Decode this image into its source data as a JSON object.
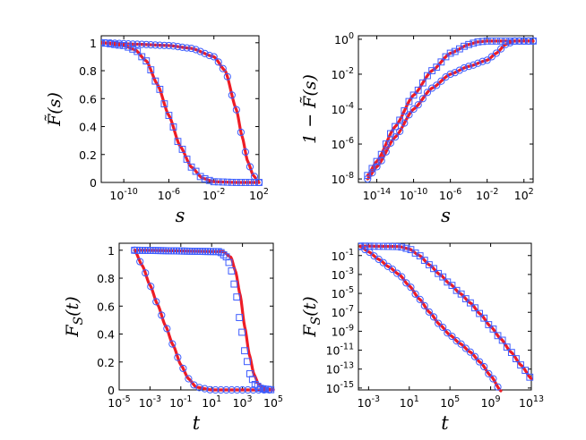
{
  "figure": {
    "fit_color": "#ee1c25",
    "marker_color": "#3d5cff",
    "panels_layout": "2x2"
  },
  "chart_data": [
    {
      "id": "top-left",
      "type": "line",
      "xscale": "log",
      "yscale": "linear",
      "xlim_log10": [
        -12,
        2
      ],
      "ylim": [
        0,
        1.05
      ],
      "xticks": [
        {
          "v": -10,
          "base": "10",
          "exp": "-10"
        },
        {
          "v": -6,
          "base": "10",
          "exp": "-6"
        },
        {
          "v": -2,
          "base": "10",
          "exp": "-2"
        },
        {
          "v": 2,
          "base": "10",
          "exp": "2"
        }
      ],
      "yticks": [
        {
          "v": 0,
          "label": "0"
        },
        {
          "v": 0.2,
          "label": "0.2"
        },
        {
          "v": 0.4,
          "label": "0.4"
        },
        {
          "v": 0.6,
          "label": "0.6"
        },
        {
          "v": 0.8,
          "label": "0.8"
        },
        {
          "v": 1,
          "label": "1"
        }
      ],
      "xlabel": "s",
      "ylabel": "F̃(s)",
      "series": [
        {
          "name": "circles",
          "marker": "circle",
          "step": 0.4,
          "x": [
            -12,
            -9,
            -6,
            -4,
            -2,
            -1,
            0,
            0.5,
            1,
            1.5,
            2
          ],
          "y": [
            1.0,
            0.99,
            0.98,
            0.96,
            0.9,
            0.8,
            0.52,
            0.33,
            0.15,
            0.05,
            0.0
          ]
        },
        {
          "name": "squares",
          "marker": "square",
          "step": 0.4,
          "x": [
            -12,
            -10,
            -9,
            -8,
            -7,
            -6,
            -5,
            -4,
            -3,
            -2,
            0,
            2
          ],
          "y": [
            1.0,
            0.98,
            0.95,
            0.87,
            0.7,
            0.48,
            0.26,
            0.11,
            0.03,
            0.005,
            0.0,
            0.0
          ]
        }
      ]
    },
    {
      "id": "top-right",
      "type": "line",
      "xscale": "log",
      "yscale": "log",
      "xlim_log10": [
        -16,
        3
      ],
      "ylim_log10": [
        -8.2,
        0.2
      ],
      "xticks": [
        {
          "v": -14,
          "base": "10",
          "exp": "-14"
        },
        {
          "v": -10,
          "base": "10",
          "exp": "-10"
        },
        {
          "v": -6,
          "base": "10",
          "exp": "-6"
        },
        {
          "v": -2,
          "base": "10",
          "exp": "-2"
        },
        {
          "v": 2,
          "base": "10",
          "exp": "2"
        }
      ],
      "yticks": [
        {
          "v": -8,
          "base": "10",
          "exp": "-8"
        },
        {
          "v": -6,
          "base": "10",
          "exp": "-6"
        },
        {
          "v": -4,
          "base": "10",
          "exp": "-4"
        },
        {
          "v": -2,
          "base": "10",
          "exp": "-2"
        },
        {
          "v": 0,
          "base": "10",
          "exp": "0"
        }
      ],
      "xlabel": "s",
      "ylabel": "1 − F̃(s)",
      "series": [
        {
          "name": "squares",
          "marker": "square",
          "step": 0.5,
          "x": [
            -15,
            -14,
            -12,
            -10,
            -8,
            -6,
            -4,
            -3,
            -2,
            0,
            3
          ],
          "y": [
            -7.8,
            -7.0,
            -5.0,
            -3.2,
            -1.8,
            -0.8,
            -0.3,
            -0.15,
            -0.1,
            -0.1,
            -0.1
          ]
        },
        {
          "name": "circles",
          "marker": "circle",
          "step": 0.5,
          "x": [
            -15,
            -14,
            -12,
            -10,
            -8,
            -6,
            -4,
            -2,
            -1,
            0,
            1,
            3
          ],
          "y": [
            -8.0,
            -7.3,
            -5.6,
            -4.0,
            -2.8,
            -2.0,
            -1.55,
            -1.2,
            -0.8,
            -0.3,
            -0.1,
            -0.1
          ]
        }
      ]
    },
    {
      "id": "bottom-left",
      "type": "line",
      "xscale": "log",
      "yscale": "linear",
      "xlim_log10": [
        -5,
        5
      ],
      "ylim": [
        0,
        1.05
      ],
      "xticks": [
        {
          "v": -5,
          "base": "10",
          "exp": "-5"
        },
        {
          "v": -3,
          "base": "10",
          "exp": "-3"
        },
        {
          "v": -1,
          "base": "10",
          "exp": "-1"
        },
        {
          "v": 1,
          "base": "10",
          "exp": "1"
        },
        {
          "v": 3,
          "base": "10",
          "exp": "3"
        },
        {
          "v": 5,
          "base": "10",
          "exp": "5"
        }
      ],
      "yticks": [
        {
          "v": 0,
          "label": "0"
        },
        {
          "v": 0.2,
          "label": "0.2"
        },
        {
          "v": 0.4,
          "label": "0.4"
        },
        {
          "v": 0.6,
          "label": "0.6"
        },
        {
          "v": 0.8,
          "label": "0.8"
        },
        {
          "v": 1,
          "label": "1"
        }
      ],
      "xlabel": "t",
      "ylabel": "F_S(t)",
      "series": [
        {
          "name": "circles",
          "marker": "circle",
          "step": 0.35,
          "x": [
            -4,
            -3.5,
            -3,
            -2.5,
            -2,
            -1.5,
            -1,
            -0.5,
            0,
            1,
            3,
            5
          ],
          "y": [
            1.0,
            0.89,
            0.75,
            0.61,
            0.46,
            0.32,
            0.18,
            0.08,
            0.02,
            0.0,
            0.0,
            0.0
          ]
        },
        {
          "name": "squares",
          "marker": "square",
          "step": 0.17,
          "fit_offset_log10": 0.25,
          "x": [
            -4,
            1.5,
            2,
            2.3,
            2.6,
            2.9,
            3.2,
            3.5,
            3.8,
            4.2,
            4.6,
            5
          ],
          "y": [
            1.0,
            0.99,
            0.95,
            0.85,
            0.68,
            0.45,
            0.25,
            0.11,
            0.04,
            0.01,
            0.004,
            0.0
          ]
        }
      ]
    },
    {
      "id": "bottom-right",
      "type": "line",
      "xscale": "log",
      "yscale": "log",
      "xlim_log10": [
        -4,
        13
      ],
      "ylim_log10": [
        -15.2,
        0.3
      ],
      "xticks": [
        {
          "v": -3,
          "base": "10",
          "exp": "-3"
        },
        {
          "v": 1,
          "base": "10",
          "exp": "1"
        },
        {
          "v": 5,
          "base": "10",
          "exp": "5"
        },
        {
          "v": 9,
          "base": "10",
          "exp": "9"
        },
        {
          "v": 13,
          "base": "10",
          "exp": "13"
        }
      ],
      "yticks": [
        {
          "v": -15,
          "base": "10",
          "exp": "-15"
        },
        {
          "v": -13,
          "base": "10",
          "exp": "-13"
        },
        {
          "v": -11,
          "base": "10",
          "exp": "-11"
        },
        {
          "v": -9,
          "base": "10",
          "exp": "-9"
        },
        {
          "v": -7,
          "base": "10",
          "exp": "-7"
        },
        {
          "v": -5,
          "base": "10",
          "exp": "-5"
        },
        {
          "v": -3,
          "base": "10",
          "exp": "-3"
        },
        {
          "v": -1,
          "base": "10",
          "exp": "-1"
        }
      ],
      "xlabel": "t",
      "ylabel": "F_S(t)",
      "series": [
        {
          "name": "squares",
          "marker": "square",
          "step": 0.45,
          "x": [
            -3.8,
            0,
            1,
            2,
            3,
            4,
            5,
            6,
            7,
            8,
            9,
            10,
            11,
            12,
            13
          ],
          "y": [
            0,
            -0.05,
            -0.3,
            -1.0,
            -2.0,
            -3.0,
            -4.0,
            -5.0,
            -6.0,
            -7.2,
            -8.5,
            -9.8,
            -11.2,
            -12.6,
            -14.0
          ]
        },
        {
          "name": "circles",
          "marker": "circle",
          "step": 0.45,
          "x": [
            -3.8,
            -3,
            -2,
            -1,
            0,
            1,
            2,
            3,
            4,
            5,
            6,
            7,
            8,
            9,
            10
          ],
          "y": [
            -0.05,
            -0.6,
            -1.4,
            -2.2,
            -3.0,
            -4.2,
            -5.6,
            -7.0,
            -8.3,
            -9.4,
            -10.3,
            -11.2,
            -12.3,
            -13.7,
            -15.3
          ]
        }
      ]
    }
  ]
}
